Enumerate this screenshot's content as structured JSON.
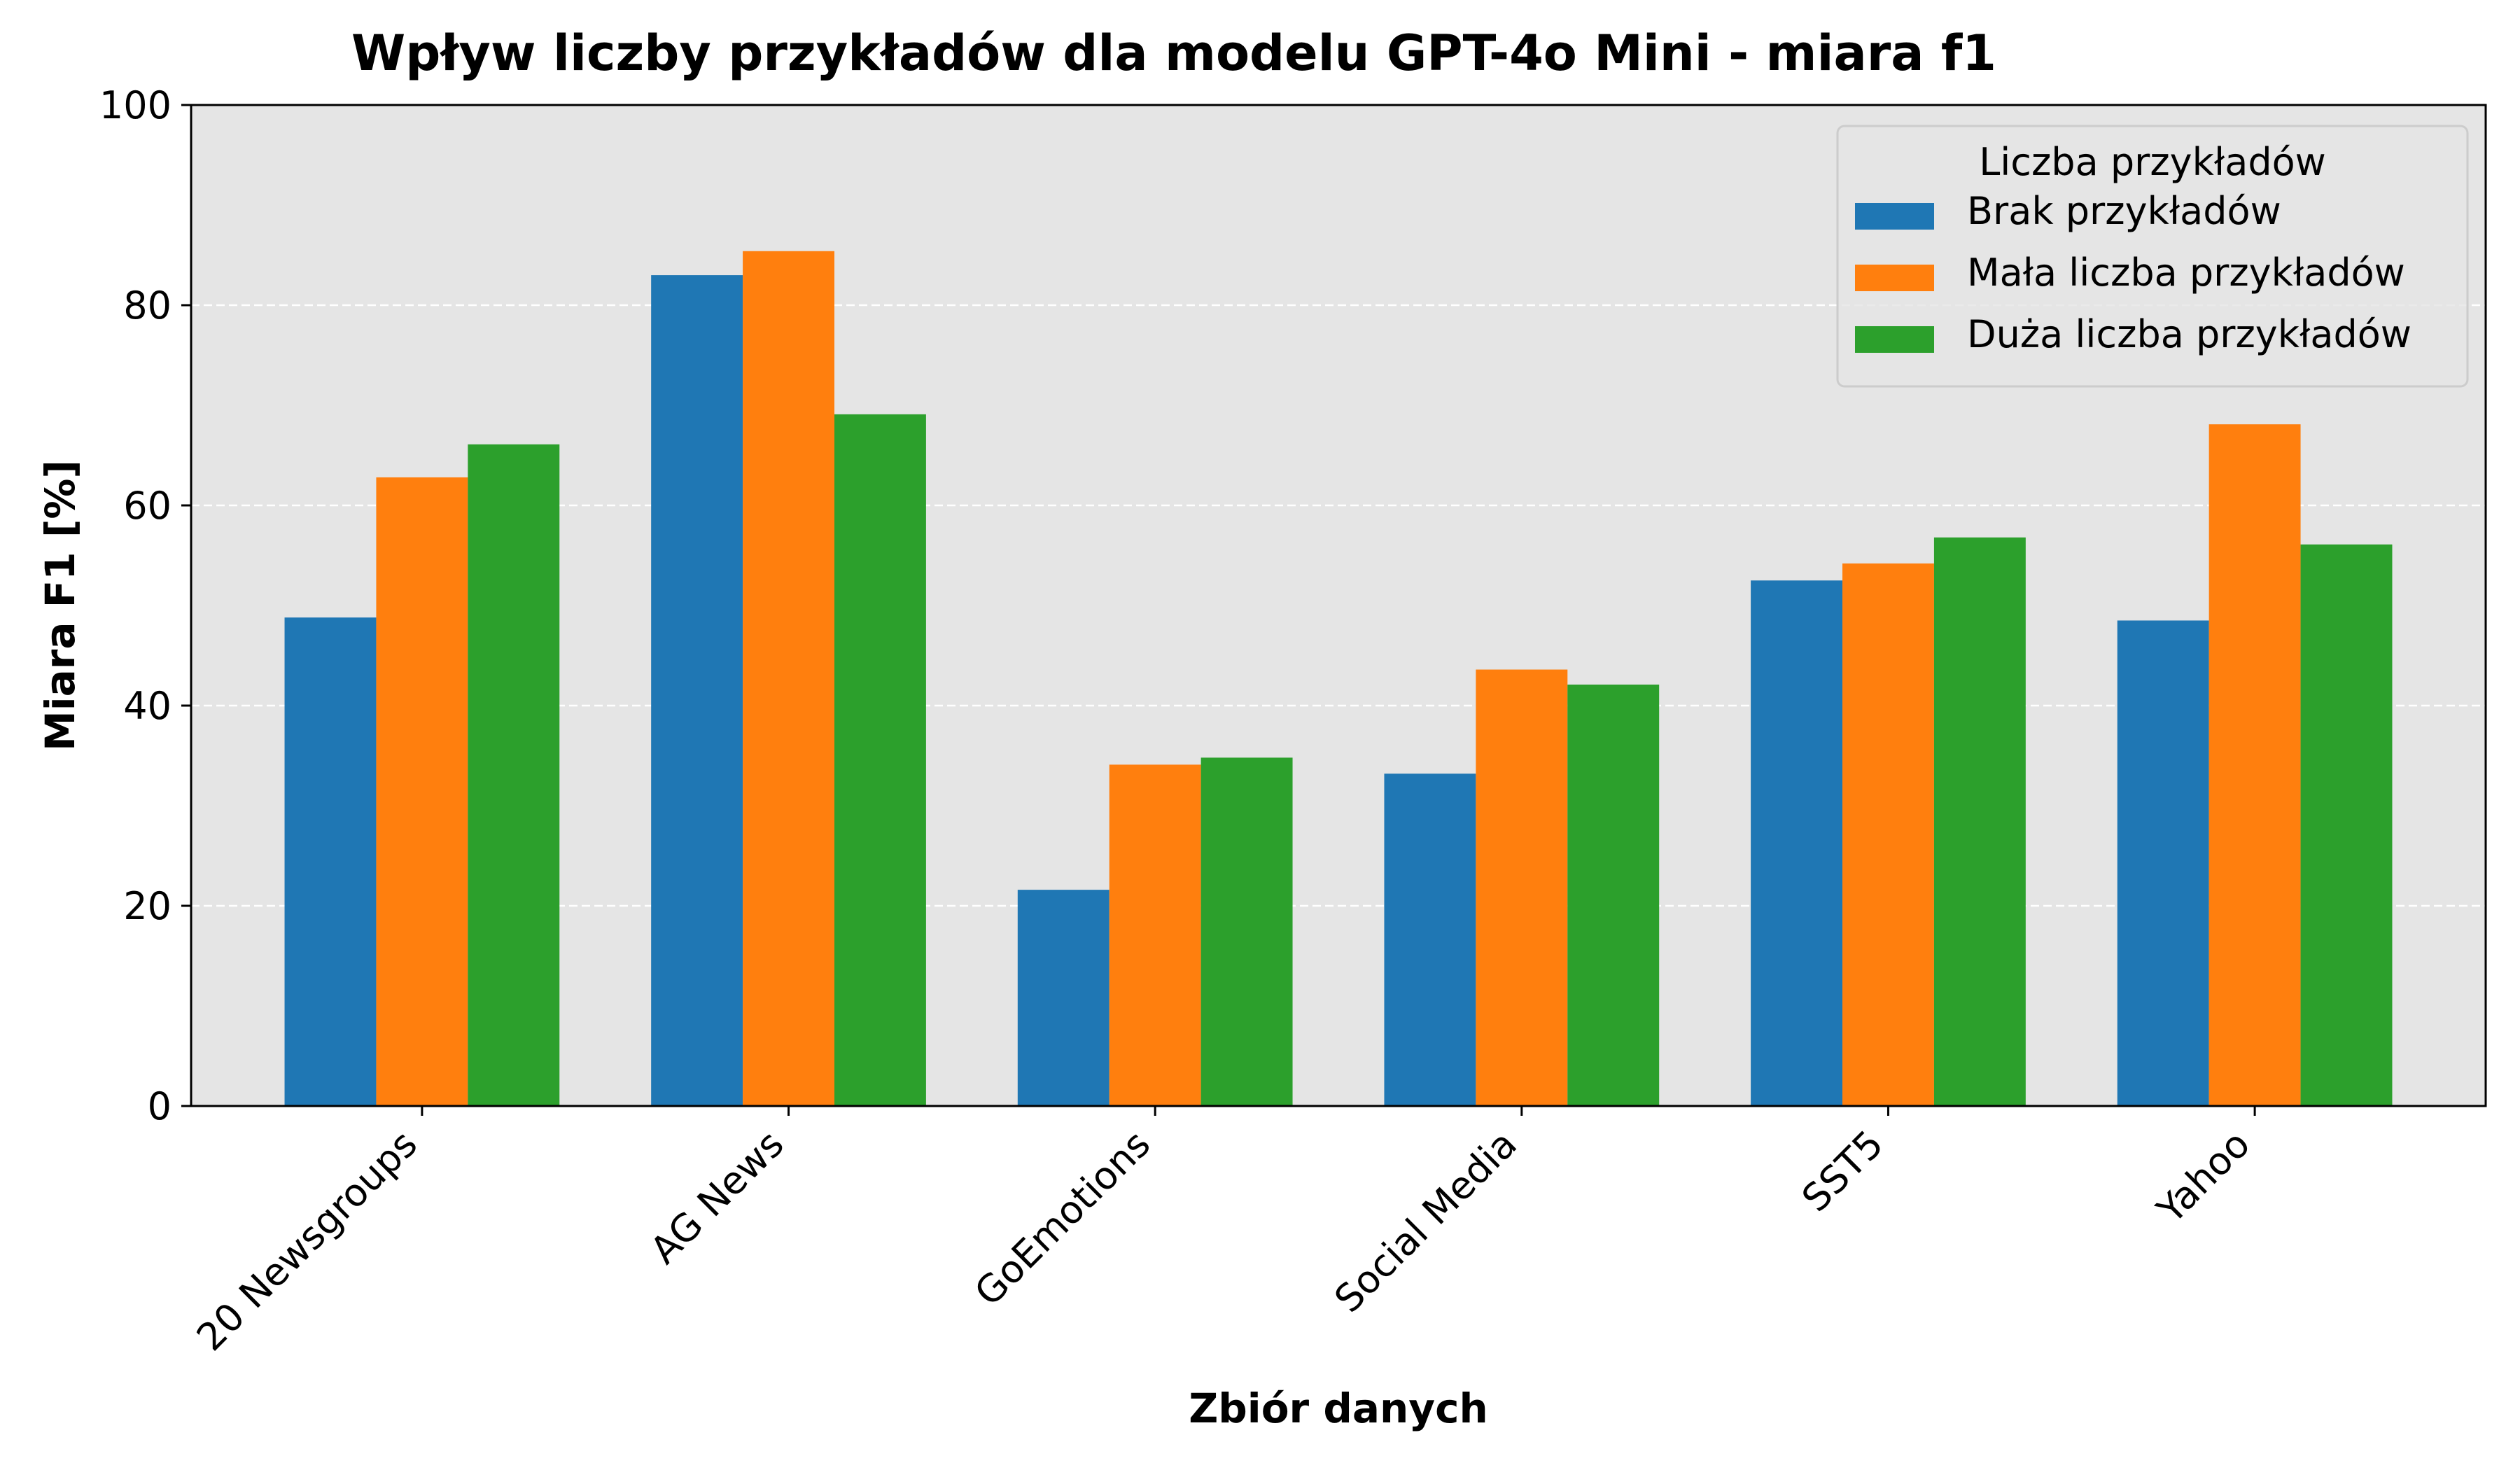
{
  "chart_data": {
    "type": "bar",
    "title": "Wpływ liczby przykładów  dla modelu GPT-4o Mini - miara f1",
    "xlabel": "Zbiór danych",
    "ylabel": "Miara F1 [%]",
    "ylim": [
      0,
      100
    ],
    "yticks": [
      "0",
      "20",
      "40",
      "60",
      "80",
      "100"
    ],
    "grid": "horizontal dashed",
    "legend_placement": "top-right",
    "legend_title": "Liczba przykładów",
    "categories": [
      "20 Newsgroups",
      "AG News",
      "GoEmotions",
      "Social Media",
      "SST5",
      "Yahoo"
    ],
    "series": [
      {
        "name": "Brak przykładów",
        "color": "#1f77b4",
        "values": [
          48.8,
          83.0,
          21.6,
          33.2,
          52.5,
          48.5
        ]
      },
      {
        "name": "Mała liczba przykładów",
        "color": "#ff7f0e",
        "values": [
          62.8,
          85.4,
          34.1,
          43.6,
          54.2,
          68.1
        ]
      },
      {
        "name": "Duża liczba przykładów",
        "color": "#2ca02c",
        "values": [
          66.1,
          69.1,
          34.8,
          42.1,
          56.8,
          56.1
        ]
      }
    ],
    "plot_background": "#e5e5e5"
  }
}
